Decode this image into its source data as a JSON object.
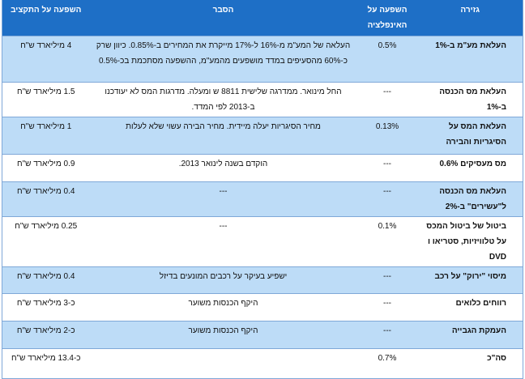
{
  "headers": {
    "name": "גזירה",
    "inflation": "השפעה על האינפלציה",
    "explanation": "הסבר",
    "budget": "השפעה על התקציב"
  },
  "rows": [
    {
      "name": "העלאת מע\"מ ב-1%",
      "inflation": "0.5%",
      "explanation": "העלאה של המע\"מ מ-16% ל-17% מייקרת את המחירים ב-0.85%. כיוון שרק כ-60% מהסעיפים במדד מושפעים מהמע\"מ, ההשפעה מסתכמת בכ-0.5%",
      "budget": "4 מיליארד ש\"ח"
    },
    {
      "name": "העלאת מס הכנסה ב-1%",
      "inflation": "---",
      "explanation": "החל מינואר. ממדרגה שלישית 8811 ש ומעלה. מדרגות המס לא יעודכנו ב-2013 לפי המדד.",
      "budget": "1.5 מיליארד ש\"ח"
    },
    {
      "name": "העלאת המס על הסיגריות והבירה",
      "inflation": "0.13%",
      "explanation": "מחיר הסיגריות יעלה מיידית. מחיר הבירה עשוי שלא לעלות",
      "budget": "1 מיליארד ש\"ח"
    },
    {
      "name": "מס מעסיקים 0.6%",
      "inflation": "---",
      "explanation": "הוקדם בשנה לינואר 2013.",
      "budget": "0.9 מיליארד ש\"ח"
    },
    {
      "name": "העלאת מס הכנסה ל\"עשירים\" ב-2%",
      "inflation": "---",
      "explanation": "---",
      "budget": "0.4 מיליארד ש\"ח"
    },
    {
      "name": "ביטול של ביטול המכס על טלוויזיות, סטריאו ו DVD",
      "inflation": "0.1%",
      "explanation": "---",
      "budget": "0.25 מיליארד ש\"ח"
    },
    {
      "name": "מיסוי \"ירוק\" על רכב",
      "inflation": "---",
      "explanation": "ישפיע בעיקר על רכבים המונעים בדיזל",
      "budget": "0.4 מיליארד ש\"ח"
    },
    {
      "name": "רווחים כלואים",
      "inflation": "---",
      "explanation": "היקף הכנסות משוער",
      "budget": "כ-3 מיליארד ש\"ח"
    },
    {
      "name": "העמקת הגבייה",
      "inflation": "---",
      "explanation": "היקף הכנסות משוער",
      "budget": "כ-2 מיליארד ש\"ח"
    },
    {
      "name": "סה\"כ",
      "inflation": "0.7%",
      "explanation": "",
      "budget": "כ-13.4 מיליארד ש\"ח"
    }
  ]
}
